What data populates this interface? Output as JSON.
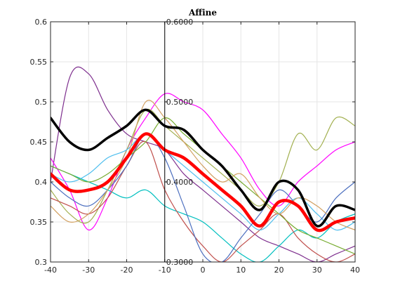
{
  "chart_data": {
    "type": "line",
    "title": "Affine",
    "xlabel": "",
    "ylabel": "",
    "xlim": [
      -40,
      40
    ],
    "ylim": [
      0.3,
      0.6
    ],
    "grid": true,
    "xticks": [
      "-40",
      "-30",
      "-20",
      "-10",
      "0",
      "10",
      "20",
      "30",
      "40"
    ],
    "yticks": [
      "0.3",
      "0.35",
      "0.4",
      "0.45",
      "0.5",
      "0.55",
      "0.6"
    ],
    "inner_axis": {
      "x": -10,
      "labels": [
        {
          "text": "0.6000",
          "y": 0.6
        },
        {
          "text": "0.5000",
          "y": 0.5
        },
        {
          "text": "0.4000",
          "y": 0.4
        },
        {
          "text": "0.3000",
          "y": 0.3
        }
      ]
    },
    "x": [
      -40,
      -35,
      -30,
      -25,
      -20,
      -15,
      -10,
      -5,
      0,
      5,
      10,
      15,
      20,
      25,
      30,
      35,
      40
    ],
    "series": [
      {
        "color": "#7E2F8E",
        "width": 1.2,
        "values": [
          0.4,
          0.53,
          0.535,
          0.49,
          0.46,
          0.45,
          0.44,
          0.41,
          0.39,
          0.37,
          0.35,
          0.33,
          0.32,
          0.31,
          0.3,
          0.31,
          0.32
        ]
      },
      {
        "color": "#FF00FF",
        "width": 1.2,
        "values": [
          0.43,
          0.39,
          0.34,
          0.38,
          0.44,
          0.48,
          0.51,
          0.5,
          0.49,
          0.46,
          0.43,
          0.39,
          0.37,
          0.4,
          0.42,
          0.44,
          0.45
        ]
      },
      {
        "color": "#00BFBF",
        "width": 1.2,
        "values": [
          0.42,
          0.41,
          0.4,
          0.39,
          0.38,
          0.39,
          0.37,
          0.36,
          0.35,
          0.33,
          0.31,
          0.3,
          0.32,
          0.34,
          0.33,
          0.35,
          0.36
        ]
      },
      {
        "color": "#A2B050",
        "width": 1.2,
        "values": [
          0.39,
          0.36,
          0.35,
          0.39,
          0.44,
          0.49,
          0.47,
          0.45,
          0.43,
          0.41,
          0.39,
          0.37,
          0.4,
          0.46,
          0.44,
          0.48,
          0.47
        ]
      },
      {
        "color": "#C0504D",
        "width": 1.2,
        "values": [
          0.38,
          0.37,
          0.36,
          0.38,
          0.42,
          0.45,
          0.39,
          0.35,
          0.32,
          0.3,
          0.32,
          0.34,
          0.36,
          0.33,
          0.31,
          0.3,
          0.31
        ]
      },
      {
        "color": "#4DBEEE",
        "width": 1.2,
        "values": [
          0.41,
          0.4,
          0.41,
          0.43,
          0.44,
          0.46,
          0.44,
          0.42,
          0.4,
          0.38,
          0.36,
          0.34,
          0.36,
          0.38,
          0.36,
          0.34,
          0.35
        ]
      },
      {
        "color": "#4C6FBF",
        "width": 1.2,
        "values": [
          0.4,
          0.38,
          0.37,
          0.39,
          0.42,
          0.46,
          0.43,
          0.37,
          0.31,
          0.3,
          0.33,
          0.36,
          0.39,
          0.37,
          0.35,
          0.38,
          0.4
        ]
      },
      {
        "color": "#77AC30",
        "width": 1.2,
        "values": [
          0.42,
          0.41,
          0.4,
          0.41,
          0.43,
          0.45,
          0.48,
          0.46,
          0.44,
          0.42,
          0.4,
          0.38,
          0.36,
          0.34,
          0.33,
          0.32,
          0.31
        ]
      },
      {
        "color": "#D2A060",
        "width": 1.2,
        "values": [
          0.37,
          0.35,
          0.36,
          0.39,
          0.43,
          0.5,
          0.48,
          0.45,
          0.42,
          0.4,
          0.41,
          0.38,
          0.36,
          0.38,
          0.37,
          0.35,
          0.34
        ]
      },
      {
        "color": "#000000",
        "width": 3.5,
        "values": [
          0.48,
          0.45,
          0.44,
          0.455,
          0.47,
          0.49,
          0.47,
          0.465,
          0.44,
          0.42,
          0.39,
          0.365,
          0.4,
          0.39,
          0.345,
          0.37,
          0.365
        ]
      },
      {
        "color": "#FF0000",
        "width": 4.5,
        "values": [
          0.41,
          0.39,
          0.39,
          0.4,
          0.43,
          0.46,
          0.44,
          0.43,
          0.41,
          0.39,
          0.37,
          0.345,
          0.375,
          0.37,
          0.34,
          0.35,
          0.355
        ]
      }
    ]
  }
}
